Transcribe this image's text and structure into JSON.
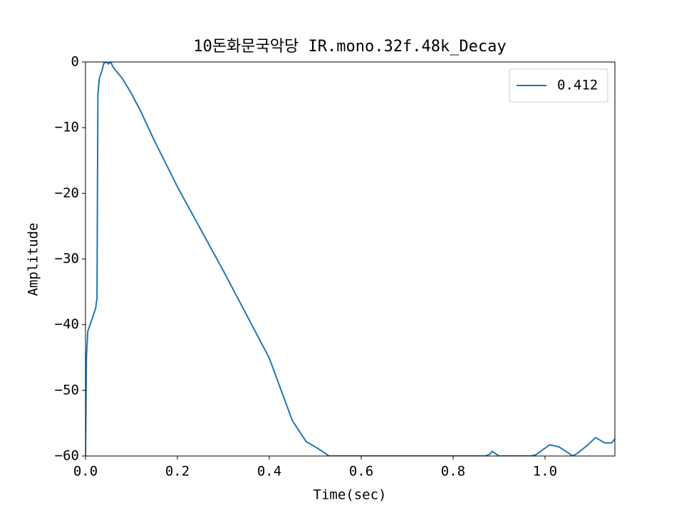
{
  "chart_data": {
    "type": "line",
    "title": "10돈화문국악당  IR.mono.32f.48k_Decay",
    "xlabel": "Time(sec)",
    "ylabel": "Amplitude",
    "x": [
      0,
      0.002,
      0.005,
      0.01,
      0.015,
      0.022,
      0.025,
      0.026,
      0.027,
      0.03,
      0.035,
      0.04,
      0.045,
      0.05,
      0.055,
      0.06,
      0.08,
      0.1,
      0.12,
      0.15,
      0.2,
      0.3,
      0.4,
      0.45,
      0.48,
      0.5,
      0.52,
      0.53,
      0.6,
      0.7,
      0.8,
      0.82,
      0.87,
      0.88,
      0.885,
      0.9,
      0.97,
      0.98,
      1.0,
      1.01,
      1.03,
      1.05,
      1.06,
      1.07,
      1.09,
      1.11,
      1.13,
      1.145,
      1.152
    ],
    "series": [
      {
        "name": "0.412",
        "color": "#1f77b4",
        "values": [
          -60,
          -45,
          -41,
          -40,
          -39,
          -37.5,
          -36,
          -20,
          -5,
          -2.5,
          -1.5,
          -0.2,
          0,
          -0.3,
          0,
          -0.8,
          -2.5,
          -4.8,
          -7.5,
          -12,
          -19,
          -31.8,
          -45.1,
          -54.6,
          -57.8,
          -58.6,
          -59.5,
          -60,
          -60,
          -60,
          -60,
          -60,
          -60,
          -59.7,
          -59.3,
          -60,
          -60,
          -59.8,
          -58.8,
          -58.3,
          -58.6,
          -59.5,
          -60,
          -59.6,
          -58.5,
          -57.2,
          -58,
          -58,
          -57.4
        ]
      }
    ],
    "xlim": [
      0,
      1.152
    ],
    "ylim": [
      -60,
      0
    ],
    "xticks": [
      {
        "value": 0,
        "label": "0.0"
      },
      0.2,
      0.4,
      0.6,
      0.8,
      {
        "value": 1,
        "label": "1.0"
      }
    ],
    "yticks": [
      0,
      {
        "value": -10,
        "label": "−10"
      },
      {
        "value": -20,
        "label": "−20"
      },
      {
        "value": -30,
        "label": "−30"
      },
      {
        "value": -40,
        "label": "−40"
      },
      {
        "value": -50,
        "label": "−50"
      },
      {
        "value": -60,
        "label": "−60"
      }
    ],
    "legend": "upper right",
    "grid": false
  }
}
